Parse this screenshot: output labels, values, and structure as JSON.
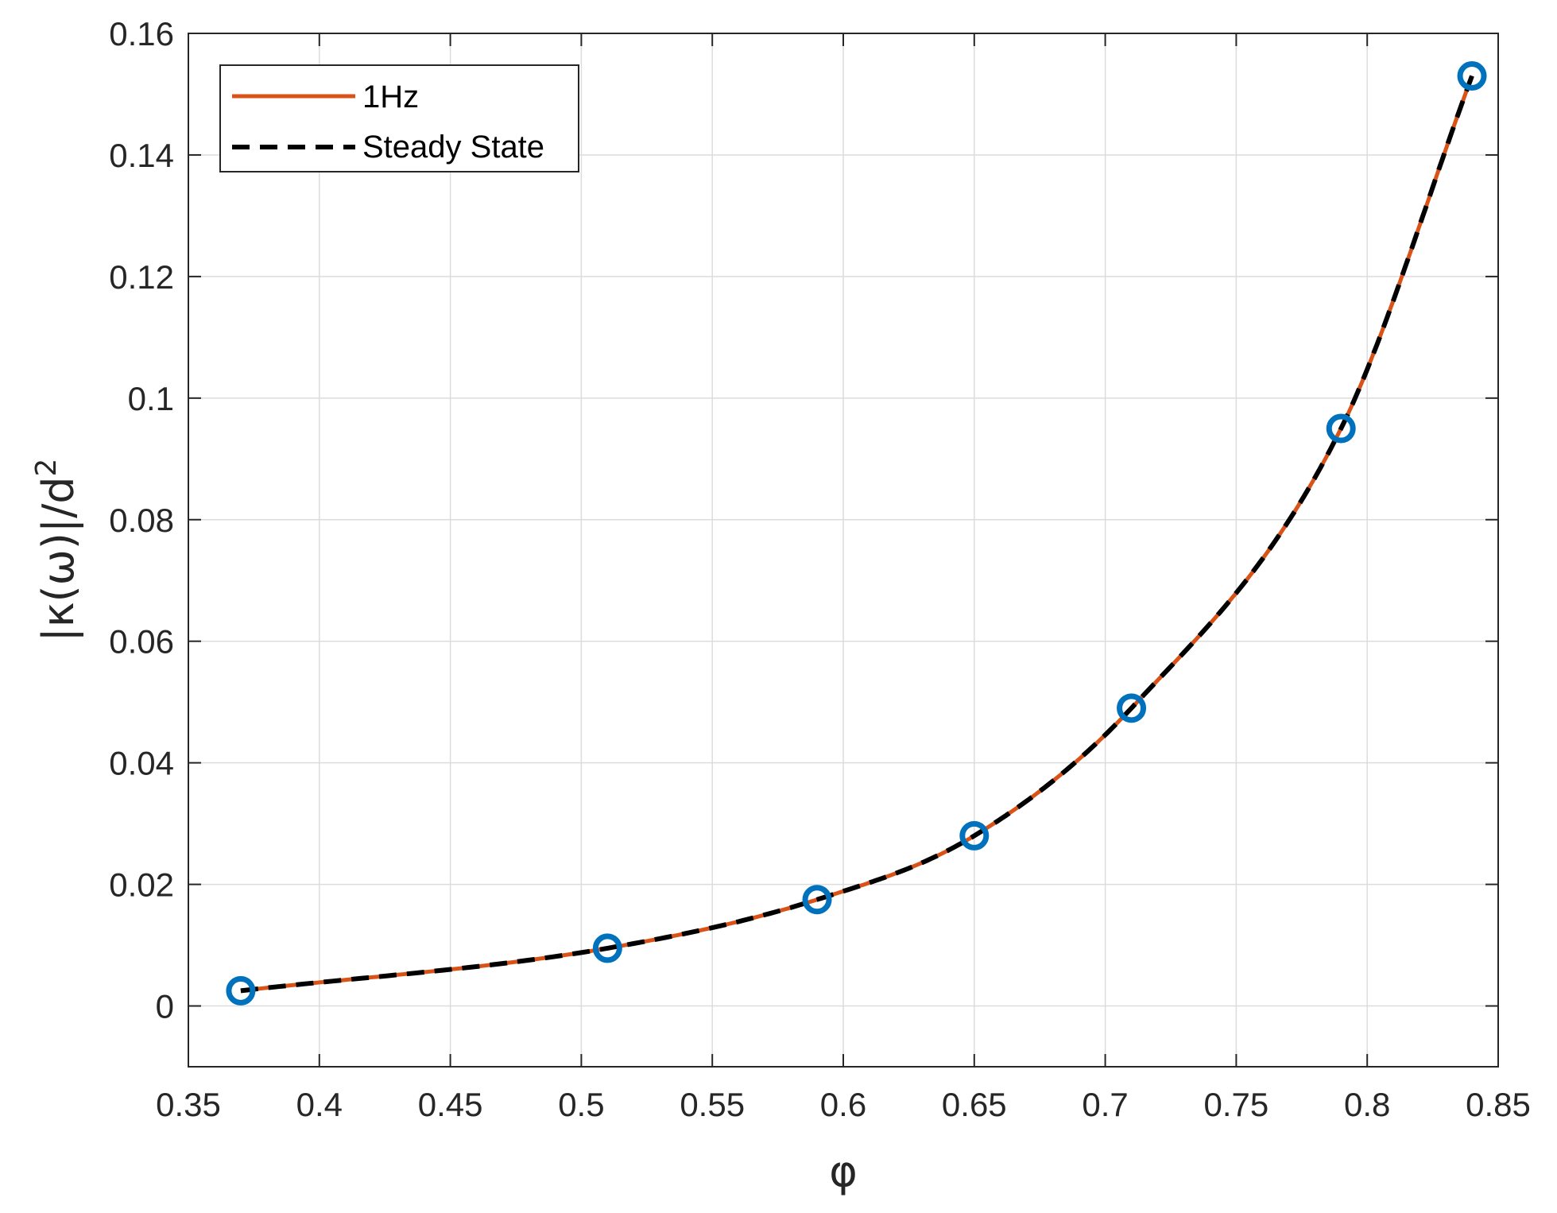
{
  "chart_data": {
    "type": "line",
    "xlabel": "φ",
    "ylabel": "|κ(ω)|/d",
    "ylabel_superscript": "2",
    "xlim": [
      0.35,
      0.85
    ],
    "ylim": [
      -0.01,
      0.16
    ],
    "xticks": [
      0.35,
      0.4,
      0.45,
      0.5,
      0.55,
      0.6,
      0.65,
      0.7,
      0.75,
      0.8,
      0.85
    ],
    "yticks": [
      0,
      0.02,
      0.04,
      0.06,
      0.08,
      0.1,
      0.12,
      0.14,
      0.16
    ],
    "xtick_labels": [
      "0.35",
      "0.4",
      "0.45",
      "0.5",
      "0.55",
      "0.6",
      "0.65",
      "0.7",
      "0.75",
      "0.8",
      "0.85"
    ],
    "ytick_labels": [
      "0",
      "0.02",
      "0.04",
      "0.06",
      "0.08",
      "0.1",
      "0.12",
      "0.14",
      "0.16"
    ],
    "grid": true,
    "legend_position": "top-left",
    "series": [
      {
        "name": "1Hz",
        "style": "solid",
        "color": "#D95319",
        "x": [
          0.37,
          0.51,
          0.59,
          0.65,
          0.71,
          0.79,
          0.84
        ],
        "y": [
          0.0025,
          0.0095,
          0.0175,
          0.028,
          0.049,
          0.095,
          0.153
        ]
      },
      {
        "name": "Steady State",
        "style": "dashed",
        "color": "#000000",
        "x": [
          0.37,
          0.51,
          0.59,
          0.65,
          0.71,
          0.79,
          0.84
        ],
        "y": [
          0.0025,
          0.0095,
          0.0175,
          0.028,
          0.049,
          0.095,
          0.153
        ]
      },
      {
        "style": "markers",
        "marker": "circle",
        "color": "#0072BD",
        "x": [
          0.37,
          0.51,
          0.59,
          0.65,
          0.71,
          0.79,
          0.84
        ],
        "y": [
          0.0025,
          0.0095,
          0.0175,
          0.028,
          0.049,
          0.095,
          0.153
        ]
      }
    ]
  }
}
